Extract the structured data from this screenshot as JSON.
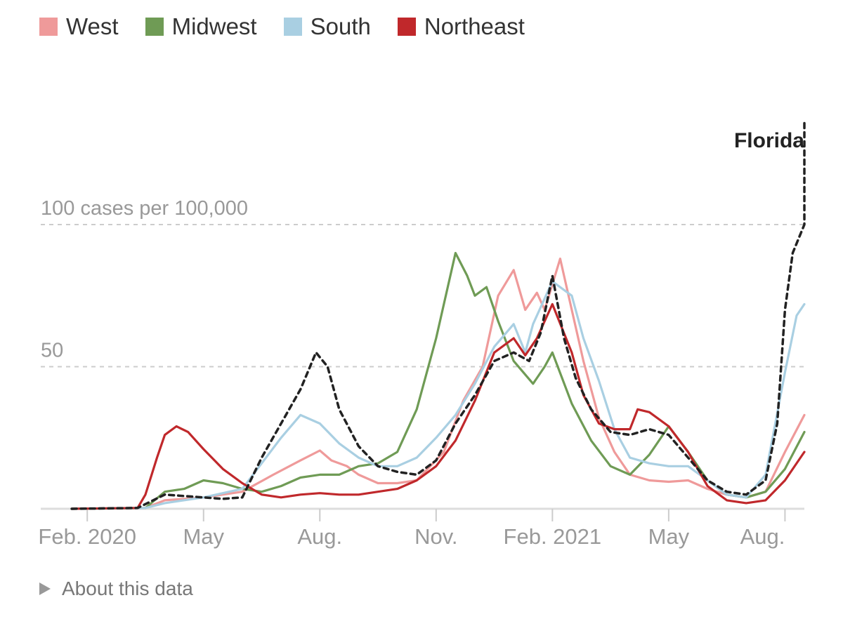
{
  "chart_data": {
    "type": "line",
    "ylabel": "100 cases per 100,000",
    "ylim": [
      0,
      100
    ],
    "yticks": [
      {
        "value": 50,
        "label": "50"
      },
      {
        "value": 100,
        "label": "100 cases per 100,000"
      }
    ],
    "xticks": [
      {
        "value": 0,
        "label": "Feb. 2020"
      },
      {
        "value": 3,
        "label": "May"
      },
      {
        "value": 6,
        "label": "Aug."
      },
      {
        "value": 9,
        "label": "Nov."
      },
      {
        "value": 12,
        "label": "Feb. 2021"
      },
      {
        "value": 15,
        "label": "May"
      },
      {
        "value": 18,
        "label": "Aug."
      }
    ],
    "x_units": "months since Feb. 1, 2020",
    "xlim": [
      -1.2,
      18.5
    ],
    "legend": [
      {
        "name": "West",
        "color": "#ef9a9a"
      },
      {
        "name": "Midwest",
        "color": "#6f9b55"
      },
      {
        "name": "South",
        "color": "#a9cfe2"
      },
      {
        "name": "Northeast",
        "color": "#c0282b"
      }
    ],
    "series": [
      {
        "name": "West",
        "color": "#ef9a9a",
        "style": "solid",
        "points": [
          [
            -0.4,
            0
          ],
          [
            1.5,
            0.3
          ],
          [
            2,
            3
          ],
          [
            3,
            4
          ],
          [
            4,
            6
          ],
          [
            4.8,
            12
          ],
          [
            5.5,
            17
          ],
          [
            6,
            20.5
          ],
          [
            6.3,
            17
          ],
          [
            6.7,
            15
          ],
          [
            7,
            12
          ],
          [
            7.5,
            9
          ],
          [
            8,
            9
          ],
          [
            8.5,
            10
          ],
          [
            9.2,
            20
          ],
          [
            9.7,
            38
          ],
          [
            10.2,
            50
          ],
          [
            10.6,
            75
          ],
          [
            11,
            84
          ],
          [
            11.3,
            70
          ],
          [
            11.6,
            76
          ],
          [
            11.8,
            70
          ],
          [
            12.2,
            88
          ],
          [
            12.5,
            70
          ],
          [
            12.8,
            52
          ],
          [
            13.2,
            32
          ],
          [
            13.6,
            20
          ],
          [
            14,
            12
          ],
          [
            14.5,
            10
          ],
          [
            15,
            9.5
          ],
          [
            15.5,
            10
          ],
          [
            16,
            7
          ],
          [
            16.5,
            5
          ],
          [
            17,
            4
          ],
          [
            17.5,
            6
          ],
          [
            18,
            20
          ],
          [
            18.5,
            33
          ]
        ]
      },
      {
        "name": "Midwest",
        "color": "#6f9b55",
        "style": "solid",
        "points": [
          [
            -0.4,
            0
          ],
          [
            1.5,
            0.3
          ],
          [
            2,
            6
          ],
          [
            2.5,
            7
          ],
          [
            3,
            10
          ],
          [
            3.5,
            9
          ],
          [
            4,
            7
          ],
          [
            4.5,
            6
          ],
          [
            5,
            8
          ],
          [
            5.5,
            11
          ],
          [
            6,
            12
          ],
          [
            6.5,
            12
          ],
          [
            7,
            15
          ],
          [
            7.5,
            16
          ],
          [
            8,
            20
          ],
          [
            8.5,
            35
          ],
          [
            9,
            60
          ],
          [
            9.5,
            90
          ],
          [
            9.8,
            82
          ],
          [
            10,
            75
          ],
          [
            10.3,
            78
          ],
          [
            10.6,
            66
          ],
          [
            11,
            52
          ],
          [
            11.5,
            44
          ],
          [
            11.8,
            50
          ],
          [
            12,
            55
          ],
          [
            12.5,
            37
          ],
          [
            13,
            24
          ],
          [
            13.5,
            15
          ],
          [
            14,
            12
          ],
          [
            14.5,
            19
          ],
          [
            15,
            29
          ],
          [
            15.5,
            20
          ],
          [
            16,
            10
          ],
          [
            16.5,
            5
          ],
          [
            17,
            4
          ],
          [
            17.5,
            6
          ],
          [
            18,
            14
          ],
          [
            18.5,
            27
          ]
        ]
      },
      {
        "name": "South",
        "color": "#a9cfe2",
        "style": "solid",
        "points": [
          [
            -0.4,
            0
          ],
          [
            1.5,
            0.3
          ],
          [
            2,
            2
          ],
          [
            3,
            4
          ],
          [
            4,
            7
          ],
          [
            4.5,
            16
          ],
          [
            5,
            25
          ],
          [
            5.5,
            33
          ],
          [
            6,
            30
          ],
          [
            6.5,
            23
          ],
          [
            7,
            18
          ],
          [
            7.5,
            15
          ],
          [
            8,
            15
          ],
          [
            8.5,
            18
          ],
          [
            9,
            25
          ],
          [
            9.5,
            33
          ],
          [
            10,
            44
          ],
          [
            10.5,
            57
          ],
          [
            11,
            65
          ],
          [
            11.3,
            55
          ],
          [
            11.5,
            65
          ],
          [
            12,
            80
          ],
          [
            12.5,
            75
          ],
          [
            12.8,
            60
          ],
          [
            13.2,
            45
          ],
          [
            13.6,
            28
          ],
          [
            14,
            18
          ],
          [
            14.5,
            16
          ],
          [
            15,
            15
          ],
          [
            15.5,
            15
          ],
          [
            16,
            10
          ],
          [
            16.5,
            5
          ],
          [
            17,
            4
          ],
          [
            17.5,
            12
          ],
          [
            18,
            48
          ],
          [
            18.3,
            68
          ],
          [
            18.5,
            72
          ]
        ]
      },
      {
        "name": "Northeast",
        "color": "#c0282b",
        "style": "solid",
        "points": [
          [
            -0.4,
            0
          ],
          [
            1.3,
            0.3
          ],
          [
            1.5,
            5
          ],
          [
            1.8,
            18
          ],
          [
            2,
            26
          ],
          [
            2.3,
            29
          ],
          [
            2.6,
            27
          ],
          [
            3,
            21
          ],
          [
            3.5,
            14
          ],
          [
            4,
            9
          ],
          [
            4.5,
            5
          ],
          [
            5,
            4
          ],
          [
            5.5,
            5
          ],
          [
            6,
            5.5
          ],
          [
            6.5,
            5
          ],
          [
            7,
            5
          ],
          [
            7.5,
            6
          ],
          [
            8,
            7
          ],
          [
            8.5,
            10
          ],
          [
            9,
            15
          ],
          [
            9.5,
            24
          ],
          [
            10,
            38
          ],
          [
            10.5,
            55
          ],
          [
            11,
            60
          ],
          [
            11.3,
            54
          ],
          [
            11.6,
            60
          ],
          [
            12,
            72
          ],
          [
            12.5,
            55
          ],
          [
            12.8,
            40
          ],
          [
            13.2,
            30
          ],
          [
            13.6,
            28
          ],
          [
            14,
            28
          ],
          [
            14.2,
            35
          ],
          [
            14.5,
            34
          ],
          [
            15,
            29
          ],
          [
            15.5,
            20
          ],
          [
            16,
            8
          ],
          [
            16.5,
            3
          ],
          [
            17,
            2
          ],
          [
            17.5,
            3
          ],
          [
            18,
            10
          ],
          [
            18.5,
            20
          ]
        ]
      },
      {
        "name": "Florida",
        "color": "#222222",
        "style": "dashed",
        "points": [
          [
            -0.4,
            0
          ],
          [
            1.3,
            0.3
          ],
          [
            2,
            5
          ],
          [
            3,
            4
          ],
          [
            3.5,
            3.5
          ],
          [
            4,
            4
          ],
          [
            4.5,
            18
          ],
          [
            5,
            30
          ],
          [
            5.5,
            42
          ],
          [
            5.9,
            55
          ],
          [
            6.2,
            50
          ],
          [
            6.5,
            35
          ],
          [
            7,
            22
          ],
          [
            7.5,
            15
          ],
          [
            8,
            13
          ],
          [
            8.5,
            12
          ],
          [
            9,
            17
          ],
          [
            9.5,
            30
          ],
          [
            10,
            40
          ],
          [
            10.5,
            52
          ],
          [
            11,
            55
          ],
          [
            11.4,
            52
          ],
          [
            11.7,
            62
          ],
          [
            12,
            82
          ],
          [
            12.3,
            60
          ],
          [
            12.6,
            46
          ],
          [
            13,
            35
          ],
          [
            13.5,
            27
          ],
          [
            14,
            26
          ],
          [
            14.5,
            28
          ],
          [
            15,
            26
          ],
          [
            15.5,
            18
          ],
          [
            16,
            10
          ],
          [
            16.5,
            6
          ],
          [
            17,
            5
          ],
          [
            17.5,
            10
          ],
          [
            17.8,
            30
          ],
          [
            18,
            70
          ],
          [
            18.2,
            90
          ],
          [
            18.5,
            100
          ],
          [
            18.5,
            137
          ]
        ]
      }
    ],
    "annotations": [
      {
        "label": "Florida",
        "series": "Florida",
        "position": "top-right"
      }
    ],
    "footer_link": "About this data"
  }
}
